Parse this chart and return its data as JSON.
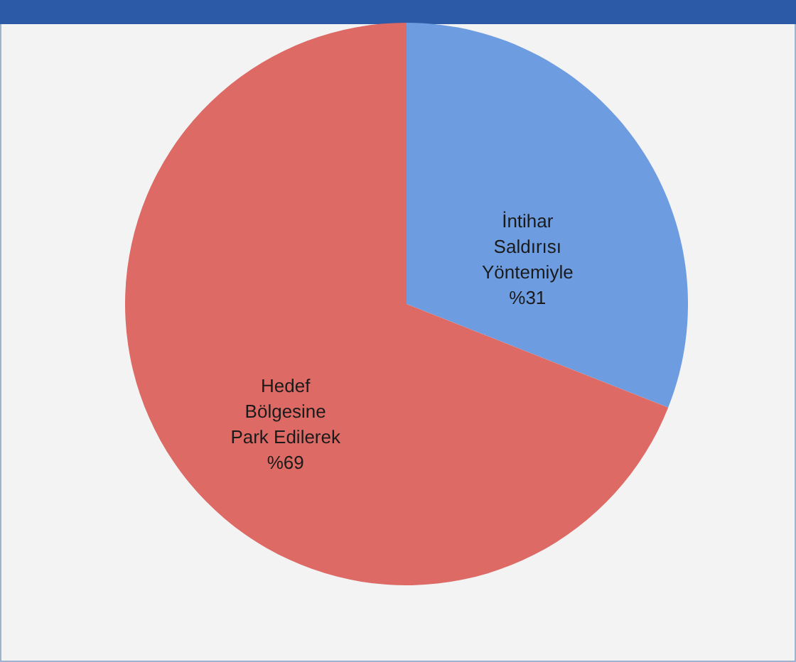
{
  "chart_data": {
    "type": "pie",
    "categories": [
      "İntihar Saldırısı Yöntemiyle",
      "Hedef Bölgesine Park Edilerek"
    ],
    "values": [
      31,
      69
    ],
    "colors": [
      "#6d9de0",
      "#dd6a64"
    ],
    "value_labels": [
      "%31",
      "%69"
    ]
  }
}
